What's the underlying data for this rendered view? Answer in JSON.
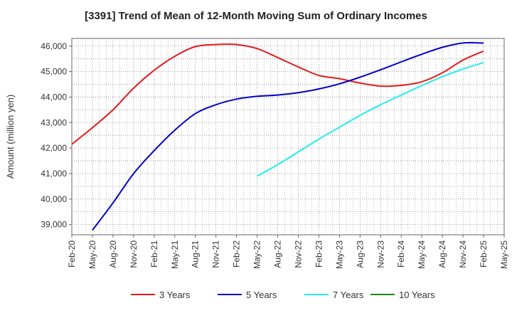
{
  "chart_data": {
    "type": "line",
    "title": "[3391]  Trend of Mean of 12-Month Moving Sum of Ordinary Incomes",
    "xlabel": "",
    "ylabel": "Amount (million yen)",
    "ylim": [
      38600,
      46300
    ],
    "yticks": [
      39000,
      40000,
      41000,
      42000,
      43000,
      44000,
      45000,
      46000
    ],
    "ytick_labels": [
      "39,000",
      "40,000",
      "41,000",
      "42,000",
      "43,000",
      "44,000",
      "45,000",
      "46,000"
    ],
    "categories": [
      "Feb-20",
      "May-20",
      "Aug-20",
      "Nov-20",
      "Feb-21",
      "May-21",
      "Aug-21",
      "Nov-21",
      "Feb-22",
      "May-22",
      "Aug-22",
      "Nov-22",
      "Feb-23",
      "May-23",
      "Aug-23",
      "Nov-23",
      "Feb-24",
      "May-24",
      "Aug-24",
      "Nov-24",
      "Feb-25",
      "May-25"
    ],
    "grid": true,
    "legend_position": "bottom",
    "series": [
      {
        "name": "3 Years",
        "color": "#e31a1c",
        "values": [
          42150,
          42800,
          43500,
          44350,
          45050,
          45600,
          45980,
          46060,
          46060,
          45900,
          45550,
          45180,
          44850,
          44720,
          44550,
          44430,
          44460,
          44600,
          44950,
          45450,
          45800,
          null
        ]
      },
      {
        "name": "5 Years",
        "color": "#0000cc",
        "values": [
          null,
          38780,
          39850,
          41000,
          41900,
          42700,
          43350,
          43700,
          43920,
          44030,
          44080,
          44170,
          44320,
          44520,
          44780,
          45070,
          45380,
          45680,
          45950,
          46120,
          46120,
          null
        ]
      },
      {
        "name": "7 Years",
        "color": "#22eeee",
        "values": [
          null,
          null,
          null,
          null,
          null,
          null,
          null,
          null,
          null,
          40900,
          41350,
          41850,
          42350,
          42820,
          43280,
          43700,
          44080,
          44450,
          44800,
          45100,
          45350,
          null
        ]
      },
      {
        "name": "10 Years",
        "color": "#1a8a1a",
        "values": [
          null,
          null,
          null,
          null,
          null,
          null,
          null,
          null,
          null,
          null,
          null,
          null,
          null,
          null,
          null,
          null,
          null,
          null,
          null,
          null,
          null,
          null
        ]
      }
    ]
  }
}
